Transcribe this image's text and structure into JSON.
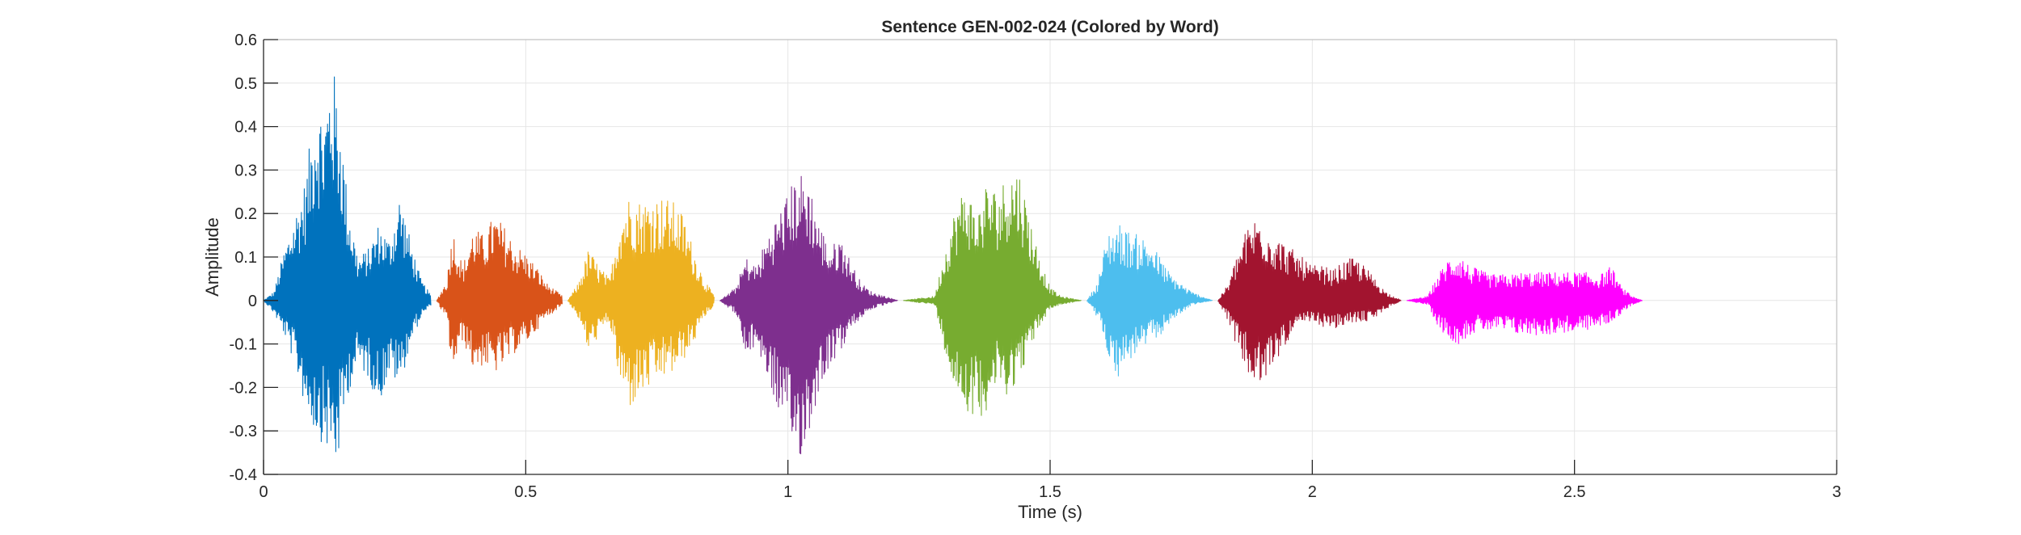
{
  "chart_data": {
    "type": "line",
    "title": "Sentence GEN-002-024 (Colored by Word)",
    "xlabel": "Time (s)",
    "ylabel": "Amplitude",
    "xlim": [
      0,
      3
    ],
    "ylim": [
      -0.4,
      0.6
    ],
    "xticks": [
      0,
      0.5,
      1,
      1.5,
      2,
      2.5,
      3
    ],
    "xtick_labels": [
      "0",
      "0.5",
      "1",
      "1.5",
      "2",
      "2.5",
      "3"
    ],
    "yticks": [
      -0.4,
      -0.3,
      -0.2,
      -0.1,
      0,
      0.1,
      0.2,
      0.3,
      0.4,
      0.5,
      0.6
    ],
    "ytick_labels": [
      "-0.4",
      "-0.3",
      "-0.2",
      "-0.1",
      "0",
      "0.1",
      "0.2",
      "0.3",
      "0.4",
      "0.5",
      "0.6"
    ],
    "grid": true,
    "series": [
      {
        "start": 0.0,
        "end": 0.32,
        "color": "#0072BD",
        "envelope": [
          [
            0.0,
            0
          ],
          [
            0.02,
            0.02
          ],
          [
            0.04,
            0.12
          ],
          [
            0.06,
            0.2
          ],
          [
            0.08,
            0.28
          ],
          [
            0.1,
            0.48
          ],
          [
            0.115,
            0.43
          ],
          [
            0.13,
            0.56
          ],
          [
            0.145,
            0.45
          ],
          [
            0.16,
            0.24
          ],
          [
            0.18,
            0.1
          ],
          [
            0.2,
            0.12
          ],
          [
            0.22,
            0.18
          ],
          [
            0.24,
            0.14
          ],
          [
            0.26,
            0.25
          ],
          [
            0.28,
            0.14
          ],
          [
            0.3,
            0.05
          ],
          [
            0.32,
            0.01
          ]
        ],
        "neg_envelope": [
          [
            0.0,
            0
          ],
          [
            0.02,
            -0.03
          ],
          [
            0.04,
            -0.08
          ],
          [
            0.06,
            -0.15
          ],
          [
            0.08,
            -0.25
          ],
          [
            0.1,
            -0.31
          ],
          [
            0.12,
            -0.34
          ],
          [
            0.14,
            -0.39
          ],
          [
            0.16,
            -0.22
          ],
          [
            0.18,
            -0.15
          ],
          [
            0.2,
            -0.18
          ],
          [
            0.22,
            -0.24
          ],
          [
            0.24,
            -0.17
          ],
          [
            0.26,
            -0.2
          ],
          [
            0.28,
            -0.1
          ],
          [
            0.3,
            -0.04
          ],
          [
            0.32,
            -0.01
          ]
        ]
      },
      {
        "start": 0.33,
        "end": 0.57,
        "color": "#D95319",
        "envelope": [
          [
            0.33,
            0
          ],
          [
            0.35,
            0.05
          ],
          [
            0.36,
            0.17
          ],
          [
            0.38,
            0.08
          ],
          [
            0.4,
            0.17
          ],
          [
            0.42,
            0.15
          ],
          [
            0.44,
            0.2
          ],
          [
            0.46,
            0.17
          ],
          [
            0.48,
            0.13
          ],
          [
            0.5,
            0.11
          ],
          [
            0.52,
            0.08
          ],
          [
            0.54,
            0.04
          ],
          [
            0.57,
            0.01
          ]
        ],
        "neg_envelope": [
          [
            0.33,
            0
          ],
          [
            0.35,
            -0.05
          ],
          [
            0.36,
            -0.17
          ],
          [
            0.38,
            -0.09
          ],
          [
            0.4,
            -0.16
          ],
          [
            0.42,
            -0.15
          ],
          [
            0.44,
            -0.17
          ],
          [
            0.46,
            -0.15
          ],
          [
            0.48,
            -0.12
          ],
          [
            0.5,
            -0.1
          ],
          [
            0.52,
            -0.07
          ],
          [
            0.54,
            -0.04
          ],
          [
            0.57,
            -0.01
          ]
        ]
      },
      {
        "start": 0.58,
        "end": 0.86,
        "color": "#EDB120",
        "envelope": [
          [
            0.58,
            0
          ],
          [
            0.6,
            0.04
          ],
          [
            0.62,
            0.12
          ],
          [
            0.64,
            0.08
          ],
          [
            0.66,
            0.05
          ],
          [
            0.68,
            0.2
          ],
          [
            0.7,
            0.25
          ],
          [
            0.72,
            0.23
          ],
          [
            0.74,
            0.24
          ],
          [
            0.76,
            0.24
          ],
          [
            0.78,
            0.23
          ],
          [
            0.8,
            0.2
          ],
          [
            0.82,
            0.12
          ],
          [
            0.84,
            0.05
          ],
          [
            0.86,
            0.01
          ]
        ],
        "neg_envelope": [
          [
            0.58,
            0
          ],
          [
            0.6,
            -0.04
          ],
          [
            0.62,
            -0.12
          ],
          [
            0.64,
            -0.08
          ],
          [
            0.66,
            -0.05
          ],
          [
            0.68,
            -0.2
          ],
          [
            0.7,
            -0.25
          ],
          [
            0.72,
            -0.22
          ],
          [
            0.74,
            -0.2
          ],
          [
            0.76,
            -0.18
          ],
          [
            0.78,
            -0.17
          ],
          [
            0.8,
            -0.14
          ],
          [
            0.82,
            -0.1
          ],
          [
            0.84,
            -0.04
          ],
          [
            0.86,
            -0.01
          ]
        ]
      },
      {
        "start": 0.87,
        "end": 1.21,
        "color": "#7E2F8E",
        "envelope": [
          [
            0.87,
            0
          ],
          [
            0.9,
            0.03
          ],
          [
            0.92,
            0.1
          ],
          [
            0.94,
            0.08
          ],
          [
            0.96,
            0.15
          ],
          [
            0.98,
            0.2
          ],
          [
            1.0,
            0.25
          ],
          [
            1.02,
            0.3
          ],
          [
            1.04,
            0.28
          ],
          [
            1.06,
            0.18
          ],
          [
            1.08,
            0.12
          ],
          [
            1.1,
            0.15
          ],
          [
            1.12,
            0.09
          ],
          [
            1.14,
            0.04
          ],
          [
            1.16,
            0.02
          ],
          [
            1.21,
            0.0
          ]
        ],
        "neg_envelope": [
          [
            0.87,
            0
          ],
          [
            0.9,
            -0.03
          ],
          [
            0.92,
            -0.14
          ],
          [
            0.94,
            -0.1
          ],
          [
            0.96,
            -0.18
          ],
          [
            0.98,
            -0.25
          ],
          [
            1.0,
            -0.34
          ],
          [
            1.02,
            -0.37
          ],
          [
            1.04,
            -0.32
          ],
          [
            1.06,
            -0.2
          ],
          [
            1.08,
            -0.15
          ],
          [
            1.1,
            -0.12
          ],
          [
            1.12,
            -0.07
          ],
          [
            1.14,
            -0.04
          ],
          [
            1.16,
            -0.02
          ],
          [
            1.21,
            0.0
          ]
        ]
      },
      {
        "start": 1.22,
        "end": 1.56,
        "color": "#77AC30",
        "envelope": [
          [
            1.22,
            0
          ],
          [
            1.28,
            0.01
          ],
          [
            1.3,
            0.12
          ],
          [
            1.32,
            0.22
          ],
          [
            1.34,
            0.27
          ],
          [
            1.36,
            0.2
          ],
          [
            1.38,
            0.28
          ],
          [
            1.4,
            0.25
          ],
          [
            1.42,
            0.3
          ],
          [
            1.44,
            0.31
          ],
          [
            1.46,
            0.2
          ],
          [
            1.48,
            0.1
          ],
          [
            1.5,
            0.03
          ],
          [
            1.52,
            0.01
          ],
          [
            1.56,
            0
          ]
        ],
        "neg_envelope": [
          [
            1.22,
            0
          ],
          [
            1.28,
            -0.01
          ],
          [
            1.3,
            -0.12
          ],
          [
            1.32,
            -0.22
          ],
          [
            1.34,
            -0.25
          ],
          [
            1.36,
            -0.28
          ],
          [
            1.38,
            -0.25
          ],
          [
            1.4,
            -0.2
          ],
          [
            1.42,
            -0.22
          ],
          [
            1.44,
            -0.18
          ],
          [
            1.46,
            -0.12
          ],
          [
            1.48,
            -0.06
          ],
          [
            1.5,
            -0.02
          ],
          [
            1.52,
            -0.01
          ],
          [
            1.56,
            0
          ]
        ]
      },
      {
        "start": 1.57,
        "end": 1.81,
        "color": "#4DBEEE",
        "envelope": [
          [
            1.57,
            0
          ],
          [
            1.59,
            0.04
          ],
          [
            1.61,
            0.16
          ],
          [
            1.63,
            0.18
          ],
          [
            1.65,
            0.16
          ],
          [
            1.67,
            0.15
          ],
          [
            1.69,
            0.14
          ],
          [
            1.71,
            0.1
          ],
          [
            1.73,
            0.06
          ],
          [
            1.75,
            0.04
          ],
          [
            1.77,
            0.02
          ],
          [
            1.81,
            0
          ]
        ],
        "neg_envelope": [
          [
            1.57,
            0
          ],
          [
            1.59,
            -0.04
          ],
          [
            1.61,
            -0.12
          ],
          [
            1.63,
            -0.18
          ],
          [
            1.65,
            -0.14
          ],
          [
            1.67,
            -0.12
          ],
          [
            1.69,
            -0.1
          ],
          [
            1.71,
            -0.08
          ],
          [
            1.73,
            -0.05
          ],
          [
            1.75,
            -0.03
          ],
          [
            1.77,
            -0.01
          ],
          [
            1.81,
            0
          ]
        ]
      },
      {
        "start": 1.82,
        "end": 2.17,
        "color": "#A2142F",
        "envelope": [
          [
            1.82,
            0
          ],
          [
            1.84,
            0.04
          ],
          [
            1.86,
            0.12
          ],
          [
            1.88,
            0.18
          ],
          [
            1.9,
            0.2
          ],
          [
            1.92,
            0.16
          ],
          [
            1.94,
            0.14
          ],
          [
            1.96,
            0.12
          ],
          [
            1.98,
            0.1
          ],
          [
            2.0,
            0.08
          ],
          [
            2.02,
            0.08
          ],
          [
            2.04,
            0.07
          ],
          [
            2.06,
            0.09
          ],
          [
            2.08,
            0.1
          ],
          [
            2.1,
            0.08
          ],
          [
            2.12,
            0.05
          ],
          [
            2.14,
            0.02
          ],
          [
            2.17,
            0
          ]
        ],
        "neg_envelope": [
          [
            1.82,
            0
          ],
          [
            1.84,
            -0.05
          ],
          [
            1.86,
            -0.12
          ],
          [
            1.88,
            -0.18
          ],
          [
            1.9,
            -0.21
          ],
          [
            1.92,
            -0.16
          ],
          [
            1.94,
            -0.12
          ],
          [
            1.96,
            -0.08
          ],
          [
            1.98,
            -0.06
          ],
          [
            2.0,
            -0.05
          ],
          [
            2.02,
            -0.06
          ],
          [
            2.04,
            -0.07
          ],
          [
            2.06,
            -0.06
          ],
          [
            2.08,
            -0.05
          ],
          [
            2.1,
            -0.05
          ],
          [
            2.12,
            -0.04
          ],
          [
            2.14,
            -0.02
          ],
          [
            2.17,
            0
          ]
        ]
      },
      {
        "start": 2.18,
        "end": 2.63,
        "color": "#FF00FF",
        "envelope": [
          [
            2.18,
            0
          ],
          [
            2.22,
            0.01
          ],
          [
            2.24,
            0.06
          ],
          [
            2.26,
            0.1
          ],
          [
            2.28,
            0.11
          ],
          [
            2.3,
            0.08
          ],
          [
            2.32,
            0.07
          ],
          [
            2.34,
            0.06
          ],
          [
            2.36,
            0.06
          ],
          [
            2.38,
            0.06
          ],
          [
            2.4,
            0.065
          ],
          [
            2.44,
            0.065
          ],
          [
            2.48,
            0.065
          ],
          [
            2.52,
            0.065
          ],
          [
            2.55,
            0.06
          ],
          [
            2.57,
            0.08
          ],
          [
            2.59,
            0.03
          ],
          [
            2.61,
            0.01
          ],
          [
            2.63,
            0
          ]
        ],
        "neg_envelope": [
          [
            2.18,
            0
          ],
          [
            2.22,
            -0.01
          ],
          [
            2.24,
            -0.06
          ],
          [
            2.26,
            -0.09
          ],
          [
            2.28,
            -0.1
          ],
          [
            2.3,
            -0.08
          ],
          [
            2.32,
            -0.07
          ],
          [
            2.34,
            -0.07
          ],
          [
            2.36,
            -0.07
          ],
          [
            2.38,
            -0.075
          ],
          [
            2.4,
            -0.08
          ],
          [
            2.44,
            -0.08
          ],
          [
            2.48,
            -0.075
          ],
          [
            2.52,
            -0.07
          ],
          [
            2.55,
            -0.06
          ],
          [
            2.57,
            -0.05
          ],
          [
            2.59,
            -0.03
          ],
          [
            2.61,
            -0.01
          ],
          [
            2.63,
            0
          ]
        ]
      }
    ]
  }
}
